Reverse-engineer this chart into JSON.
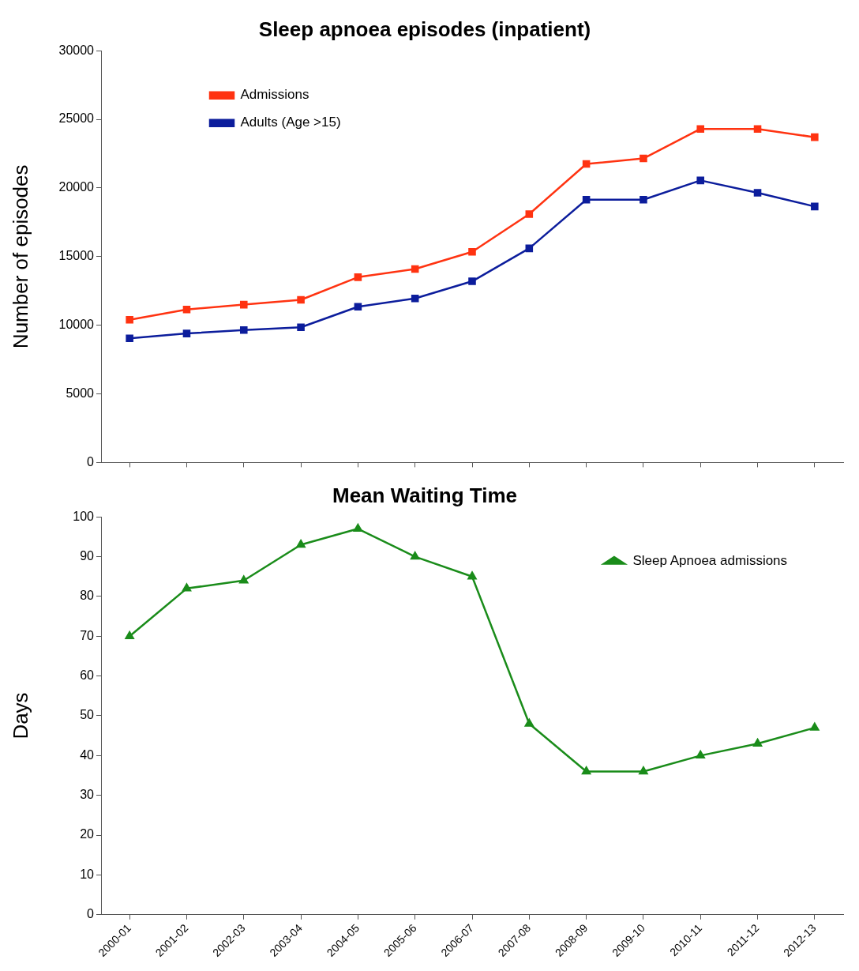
{
  "chart_data": [
    {
      "type": "line",
      "title": "Sleep apnoea episodes (inpatient)",
      "ylabel": "Number of episodes",
      "categories": [
        "2000-01",
        "2001-02",
        "2002-03",
        "2003-04",
        "2004-05",
        "2005-06",
        "2006-07",
        "2007-08",
        "2008-09",
        "2009-10",
        "2010-11",
        "2011-12",
        "2012-13"
      ],
      "series": [
        {
          "name": "Admissions",
          "color": "#ff3311",
          "values": [
            10400,
            11150,
            11500,
            11850,
            13500,
            14100,
            15350,
            18100,
            21750,
            22150,
            24300,
            24300,
            23700
          ]
        },
        {
          "name": "Adults (Age >15)",
          "color": "#0c1d9c",
          "values": [
            9050,
            9400,
            9650,
            9850,
            11350,
            11950,
            13200,
            15600,
            19150,
            19150,
            20550,
            19650,
            18650
          ]
        }
      ],
      "ylim": [
        0,
        30000
      ],
      "yticks": [
        0,
        5000,
        10000,
        15000,
        20000,
        25000,
        30000
      ],
      "grid": false,
      "legend": "top left",
      "marker": "square",
      "tick_labels": "y"
    },
    {
      "type": "line",
      "title": "Mean Waiting Time",
      "ylabel": "Days",
      "categories": [
        "2000-01",
        "2001-02",
        "2002-03",
        "2003-04",
        "2004-05",
        "2005-06",
        "2006-07",
        "2007-08",
        "2008-09",
        "2009-10",
        "2010-11",
        "2011-12",
        "2012-13"
      ],
      "series": [
        {
          "name": "Sleep Apnoea admissions",
          "color": "#1a8c1a",
          "values": [
            70,
            82,
            84,
            93,
            97,
            90,
            85,
            48,
            36,
            36,
            40,
            43,
            47
          ]
        }
      ],
      "ylim": [
        0,
        100
      ],
      "yticks": [
        0,
        10,
        20,
        30,
        40,
        50,
        60,
        70,
        80,
        90,
        100
      ],
      "grid": false,
      "legend": "top right",
      "marker": "triangle"
    }
  ]
}
